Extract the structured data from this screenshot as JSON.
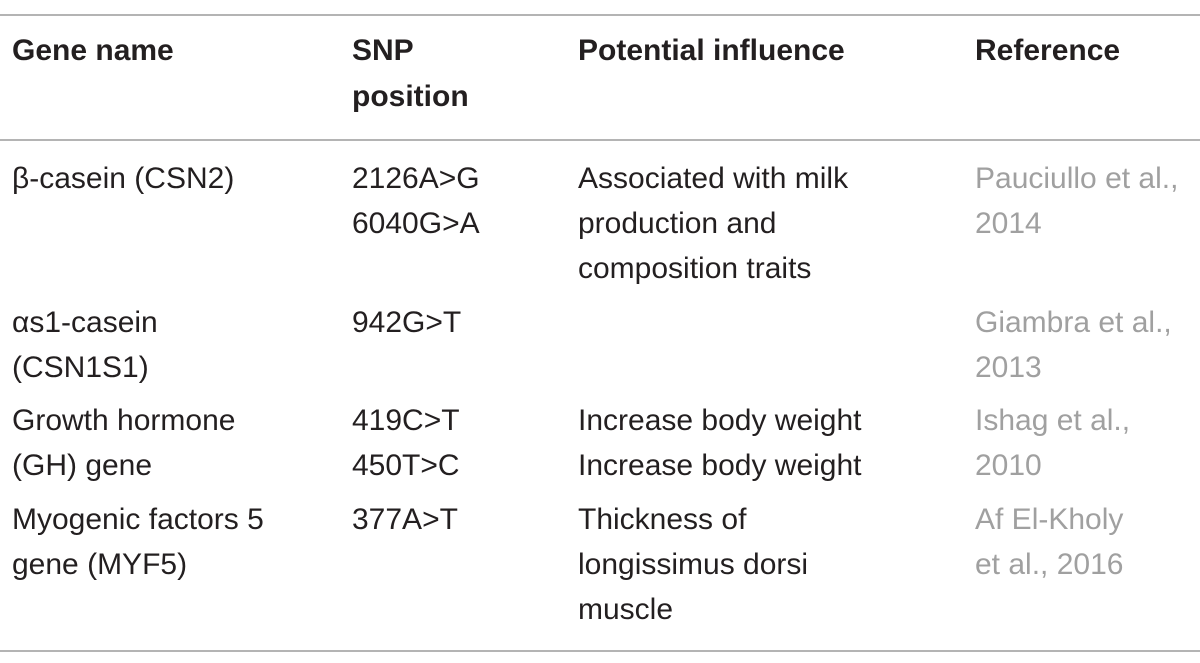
{
  "header": {
    "gene_name": "Gene name",
    "snp_position": "SNP\nposition",
    "potential_influence": "Potential influence",
    "reference": "Reference"
  },
  "rows": [
    {
      "gene": "β-casein (CSN2)",
      "snp": "2126A>G\n6040G>A",
      "influence": "Associated with milk\nproduction and\ncomposition traits",
      "reference": "Pauciullo et al.,\n2014"
    },
    {
      "gene": "αs1-casein\n(CSN1S1)",
      "snp": "942G>T",
      "influence": "",
      "reference": "Giambra et al.,\n2013"
    },
    {
      "gene": "Growth hormone\n(GH) gene",
      "snp": "419C>T\n450T>C",
      "influence": "Increase body weight\nIncrease body weight",
      "reference": "Ishag et al.,\n2010"
    },
    {
      "gene": "Myogenic factors 5\ngene (MYF5)",
      "snp": "377A>T",
      "influence": "Thickness of\nlongissimus dorsi\nmuscle",
      "reference": "Af El-Kholy\net al., 2016"
    }
  ]
}
